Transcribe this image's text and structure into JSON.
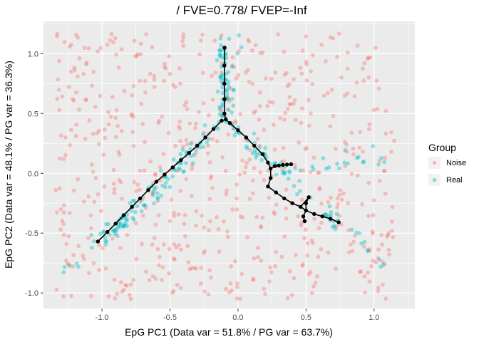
{
  "chart_data": {
    "type": "scatter",
    "title": "/ FVE=0.778/ FVEP=-Inf",
    "xlabel": "EpG PC1 (Data var = 51.8% / PG var = 63.7%)",
    "ylabel": "EpG PC2 (Data var = 48.1% / PG var = 36.3%)",
    "xlim": [
      -1.43,
      1.3
    ],
    "ylim": [
      -1.13,
      1.27
    ],
    "xticks": [
      -1.0,
      -0.5,
      0.0,
      0.5,
      1.0
    ],
    "xtick_labels": [
      "-1.0",
      "-0.5",
      "0.0",
      "0.5",
      "1.0"
    ],
    "yticks": [
      -1.0,
      -0.5,
      0.0,
      0.5,
      1.0
    ],
    "ytick_labels": [
      "-1.0",
      "-0.5",
      "0.0",
      "0.5",
      "1.0"
    ],
    "grid": true,
    "background": "#ebebeb",
    "legend": {
      "title": "Group",
      "position": "right",
      "entries": [
        {
          "label": "Noise",
          "color": "#F8766D"
        },
        {
          "label": "Real",
          "color": "#00BFC4"
        }
      ]
    },
    "series": [
      {
        "name": "Noise",
        "color": "#F8766D",
        "opacity": 0.4,
        "generator": {
          "n": 620,
          "seed": 7,
          "xrange": [
            -1.35,
            1.15
          ],
          "yrange": [
            -1.05,
            1.17
          ]
        }
      },
      {
        "name": "Real",
        "color": "#00BFC4",
        "opacity": 0.4,
        "generator": {
          "seed": 11,
          "noise": 0.035,
          "arms": [
            {
              "from": [
                -0.1,
                1.17
              ],
              "to": [
                -0.1,
                0.45
              ],
              "n": 70
            },
            {
              "from": [
                -0.1,
                0.45
              ],
              "to": [
                -1.0,
                -0.57
              ],
              "n": 90
            },
            {
              "from": [
                -0.6,
                -0.15
              ],
              "to": [
                -1.3,
                -0.82
              ],
              "n": 25
            },
            {
              "from": [
                -0.1,
                0.45
              ],
              "to": [
                0.75,
                -0.42
              ],
              "n": 60
            },
            {
              "from": [
                0.3,
                0.05
              ],
              "to": [
                1.1,
                0.13
              ],
              "n": 22
            },
            {
              "from": [
                0.75,
                -0.42
              ],
              "to": [
                1.1,
                -0.82
              ],
              "n": 10
            }
          ]
        }
      }
    ],
    "graph": {
      "color": "#000000",
      "nodes": [
        [
          -0.1,
          1.05
        ],
        [
          -0.1,
          0.9
        ],
        [
          -0.1,
          0.75
        ],
        [
          -0.1,
          0.62
        ],
        [
          -0.1,
          0.5
        ],
        [
          -0.09,
          0.45
        ],
        [
          -0.12,
          0.44
        ],
        [
          -0.18,
          0.37
        ],
        [
          -0.24,
          0.3
        ],
        [
          -0.3,
          0.23
        ],
        [
          -0.36,
          0.17
        ],
        [
          -0.42,
          0.11
        ],
        [
          -0.48,
          0.05
        ],
        [
          -0.54,
          -0.01
        ],
        [
          -0.6,
          -0.07
        ],
        [
          -0.66,
          -0.14
        ],
        [
          -0.72,
          -0.21
        ],
        [
          -0.78,
          -0.28
        ],
        [
          -0.84,
          -0.35
        ],
        [
          -0.9,
          -0.42
        ],
        [
          -0.96,
          -0.49
        ],
        [
          -1.03,
          -0.57
        ],
        [
          -0.06,
          0.42
        ],
        [
          0.0,
          0.36
        ],
        [
          0.06,
          0.3
        ],
        [
          0.12,
          0.23
        ],
        [
          0.18,
          0.16
        ],
        [
          0.22,
          0.09
        ],
        [
          0.24,
          0.04
        ],
        [
          0.24,
          -0.04
        ],
        [
          0.22,
          -0.11
        ],
        [
          0.28,
          -0.16
        ],
        [
          0.34,
          -0.21
        ],
        [
          0.4,
          -0.25
        ],
        [
          0.46,
          -0.28
        ],
        [
          0.5,
          -0.31
        ],
        [
          0.56,
          -0.34
        ],
        [
          0.62,
          -0.36
        ],
        [
          0.68,
          -0.38
        ],
        [
          0.74,
          -0.41
        ],
        [
          0.27,
          0.06
        ],
        [
          0.3,
          0.065
        ],
        [
          0.33,
          0.07
        ],
        [
          0.36,
          0.073
        ],
        [
          0.39,
          0.076
        ],
        [
          0.52,
          -0.2
        ],
        [
          0.5,
          -0.25
        ],
        [
          0.48,
          -0.36
        ],
        [
          0.49,
          -0.4
        ]
      ],
      "edges": [
        [
          0,
          1
        ],
        [
          1,
          2
        ],
        [
          2,
          3
        ],
        [
          3,
          4
        ],
        [
          4,
          5
        ],
        [
          5,
          6
        ],
        [
          6,
          7
        ],
        [
          7,
          8
        ],
        [
          8,
          9
        ],
        [
          9,
          10
        ],
        [
          10,
          11
        ],
        [
          11,
          12
        ],
        [
          12,
          13
        ],
        [
          13,
          14
        ],
        [
          14,
          15
        ],
        [
          15,
          16
        ],
        [
          16,
          17
        ],
        [
          17,
          18
        ],
        [
          18,
          19
        ],
        [
          19,
          20
        ],
        [
          20,
          21
        ],
        [
          5,
          22
        ],
        [
          22,
          23
        ],
        [
          23,
          24
        ],
        [
          24,
          25
        ],
        [
          25,
          26
        ],
        [
          26,
          27
        ],
        [
          27,
          28
        ],
        [
          28,
          29
        ],
        [
          29,
          30
        ],
        [
          30,
          31
        ],
        [
          31,
          32
        ],
        [
          32,
          33
        ],
        [
          33,
          34
        ],
        [
          34,
          35
        ],
        [
          35,
          36
        ],
        [
          36,
          37
        ],
        [
          37,
          38
        ],
        [
          38,
          39
        ],
        [
          28,
          40
        ],
        [
          40,
          41
        ],
        [
          41,
          42
        ],
        [
          42,
          43
        ],
        [
          43,
          44
        ],
        [
          34,
          45
        ],
        [
          45,
          46
        ],
        [
          46,
          35
        ],
        [
          35,
          47
        ],
        [
          47,
          48
        ]
      ]
    }
  }
}
